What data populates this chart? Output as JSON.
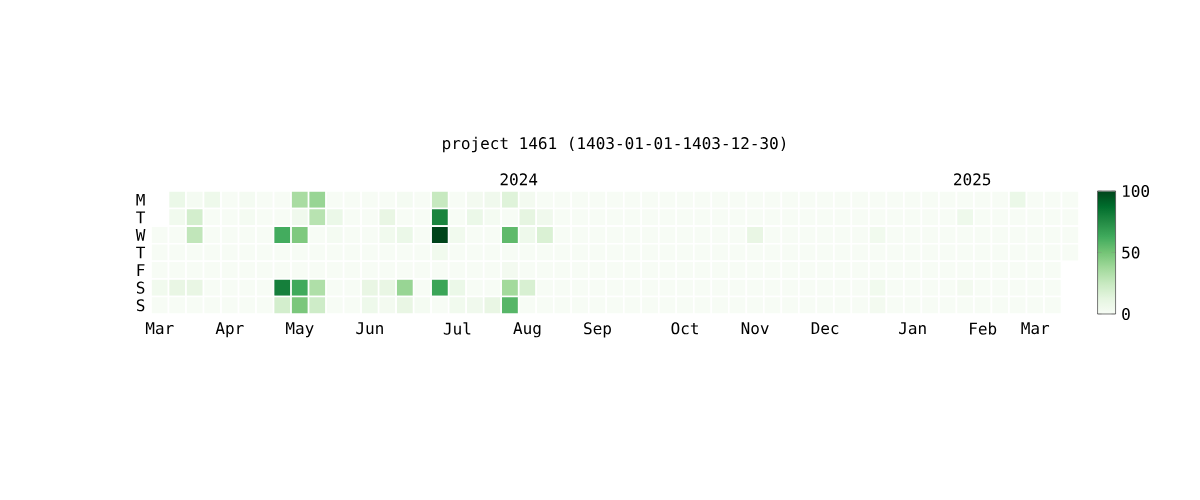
{
  "chart_data": {
    "type": "heatmap",
    "title": "project 1461 (1403-01-01-1403-12-30)",
    "annotations": [
      "2024",
      "2025"
    ],
    "categories": [
      "Mar",
      null,
      null,
      null,
      "Apr",
      null,
      null,
      null,
      "May",
      null,
      null,
      null,
      "Jun",
      null,
      null,
      null,
      null,
      "Jul",
      null,
      null,
      null,
      "Aug",
      null,
      null,
      null,
      "Sep",
      null,
      null,
      null,
      null,
      "Oct",
      null,
      null,
      null,
      "Nov",
      null,
      null,
      null,
      "Dec",
      null,
      null,
      null,
      null,
      "Jan",
      null,
      null,
      null,
      "Feb",
      null,
      null,
      "Mar",
      null,
      null
    ],
    "y_categories": [
      "M",
      "T",
      "W",
      "T",
      "F",
      "S",
      "S"
    ],
    "cells": [
      [
        null,
        8,
        2,
        6,
        0,
        2,
        0,
        0,
        35,
        40,
        0,
        0,
        0,
        0,
        2,
        0,
        25,
        0,
        3,
        5,
        15,
        3,
        0,
        0,
        0,
        0,
        0,
        0,
        0,
        0,
        0,
        0,
        0,
        0,
        0,
        0,
        0,
        0,
        0,
        0,
        0,
        0,
        0,
        0,
        0,
        0,
        0,
        0,
        0,
        8,
        0,
        0,
        0
      ],
      [
        null,
        4,
        20,
        0,
        0,
        2,
        0,
        0,
        5,
        30,
        8,
        0,
        0,
        10,
        0,
        0,
        78,
        0,
        8,
        2,
        0,
        12,
        5,
        0,
        0,
        0,
        0,
        0,
        0,
        0,
        0,
        0,
        0,
        0,
        0,
        0,
        0,
        0,
        0,
        0,
        0,
        0,
        0,
        0,
        0,
        0,
        6,
        0,
        0,
        0,
        0,
        0,
        0
      ],
      [
        0,
        0,
        27,
        0,
        0,
        0,
        0,
        62,
        47,
        0,
        2,
        0,
        0,
        4,
        8,
        0,
        100,
        4,
        0,
        0,
        55,
        6,
        17,
        0,
        0,
        0,
        0,
        0,
        0,
        0,
        0,
        0,
        0,
        0,
        10,
        0,
        0,
        0,
        0,
        0,
        0,
        4,
        0,
        0,
        0,
        0,
        0,
        0,
        0,
        0,
        0,
        0,
        0
      ],
      [
        0,
        0,
        0,
        0,
        0,
        0,
        0,
        0,
        0,
        0,
        0,
        0,
        0,
        0,
        0,
        0,
        4,
        0,
        0,
        0,
        0,
        0,
        0,
        0,
        0,
        0,
        0,
        0,
        0,
        0,
        0,
        0,
        0,
        0,
        0,
        0,
        0,
        0,
        0,
        0,
        0,
        0,
        0,
        0,
        0,
        0,
        0,
        0,
        0,
        0,
        0,
        0,
        0
      ],
      [
        0,
        0,
        0,
        0,
        0,
        0,
        0,
        0,
        0,
        0,
        0,
        0,
        0,
        0,
        0,
        0,
        0,
        0,
        0,
        0,
        3,
        0,
        0,
        0,
        0,
        0,
        0,
        0,
        0,
        0,
        0,
        0,
        0,
        0,
        0,
        0,
        0,
        0,
        0,
        0,
        0,
        0,
        0,
        0,
        0,
        0,
        0,
        0,
        0,
        0,
        0,
        0,
        null
      ],
      [
        4,
        10,
        10,
        0,
        0,
        0,
        0,
        80,
        63,
        33,
        0,
        0,
        10,
        10,
        40,
        0,
        65,
        8,
        0,
        0,
        37,
        18,
        0,
        0,
        0,
        0,
        0,
        0,
        0,
        0,
        0,
        0,
        0,
        0,
        0,
        0,
        0,
        0,
        0,
        0,
        0,
        4,
        0,
        0,
        0,
        0,
        3,
        0,
        0,
        0,
        0,
        0,
        null
      ],
      [
        0,
        0,
        0,
        0,
        0,
        0,
        0,
        20,
        48,
        22,
        0,
        0,
        6,
        3,
        10,
        2,
        0,
        4,
        5,
        10,
        57,
        0,
        0,
        0,
        0,
        0,
        0,
        0,
        0,
        0,
        0,
        0,
        0,
        0,
        0,
        0,
        0,
        0,
        0,
        0,
        0,
        3,
        0,
        0,
        0,
        0,
        0,
        0,
        0,
        0,
        0,
        0,
        null
      ]
    ],
    "clim": [
      0,
      100
    ],
    "cticks": [
      0,
      50,
      100
    ]
  }
}
